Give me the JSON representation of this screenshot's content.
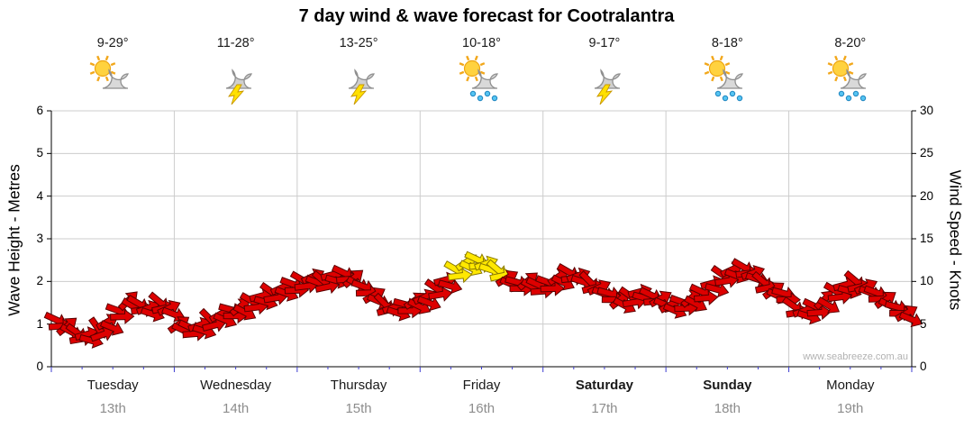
{
  "chart_data": {
    "type": "wind-forecast",
    "title": "7 day wind & wave forecast for Cootralantra",
    "watermark": "www.seabreeze.com.au",
    "left_axis": {
      "label": "Wave Height - Metres",
      "min": 0,
      "max": 6,
      "ticks": [
        0,
        1,
        2,
        3,
        4,
        5,
        6
      ]
    },
    "right_axis": {
      "label": "Wind Speed - Knots",
      "min": 0,
      "max": 30,
      "ticks": [
        0,
        5,
        10,
        15,
        20,
        25,
        30
      ]
    },
    "grid": {
      "horizontal": true,
      "vertical_day_separators": true
    },
    "days": [
      {
        "name": "Tuesday",
        "date": "13th",
        "temp": "9-29°",
        "icon": "partly-cloudy",
        "bold": false
      },
      {
        "name": "Wednesday",
        "date": "14th",
        "temp": "11-28°",
        "icon": "thunderstorm",
        "bold": false
      },
      {
        "name": "Thursday",
        "date": "15th",
        "temp": "13-25°",
        "icon": "thunderstorm",
        "bold": false
      },
      {
        "name": "Friday",
        "date": "16th",
        "temp": "10-18°",
        "icon": "sun-showers",
        "bold": false
      },
      {
        "name": "Saturday",
        "date": "17th",
        "temp": "9-17°",
        "icon": "thunderstorm",
        "bold": true
      },
      {
        "name": "Sunday",
        "date": "18th",
        "temp": "8-18°",
        "icon": "sun-showers",
        "bold": true
      },
      {
        "name": "Monday",
        "date": "19th",
        "temp": "8-20°",
        "icon": "sun-showers",
        "bold": false
      }
    ],
    "wind": {
      "unit": "knots",
      "arrow_colors": {
        "normal": "#dd0000",
        "peak": "#ffe800"
      },
      "points_format": [
        "time_days",
        "speed_knots",
        "direction_deg",
        "peak_flag"
      ],
      "points": [
        [
          0.04,
          5.5,
          25,
          0
        ],
        [
          0.13,
          4.8,
          -40,
          0
        ],
        [
          0.21,
          4.0,
          35,
          0
        ],
        [
          0.29,
          3.8,
          -15,
          0
        ],
        [
          0.38,
          4.5,
          55,
          0
        ],
        [
          0.46,
          5.3,
          -30,
          0
        ],
        [
          0.54,
          6.6,
          20,
          0
        ],
        [
          0.63,
          7.8,
          -45,
          0
        ],
        [
          0.71,
          7.4,
          30,
          0
        ],
        [
          0.79,
          6.9,
          -20,
          0
        ],
        [
          0.88,
          7.6,
          40,
          0
        ],
        [
          0.96,
          6.9,
          -25,
          0
        ],
        [
          1.04,
          5.0,
          -35,
          0
        ],
        [
          1.13,
          4.6,
          25,
          0
        ],
        [
          1.21,
          4.9,
          -20,
          0
        ],
        [
          1.29,
          5.6,
          45,
          0
        ],
        [
          1.38,
          6.2,
          -30,
          0
        ],
        [
          1.46,
          6.7,
          15,
          0
        ],
        [
          1.54,
          7.1,
          -40,
          0
        ],
        [
          1.63,
          7.7,
          30,
          0
        ],
        [
          1.71,
          8.3,
          -15,
          0
        ],
        [
          1.79,
          8.8,
          35,
          0
        ],
        [
          1.88,
          9.3,
          -25,
          0
        ],
        [
          1.96,
          9.7,
          20,
          0
        ],
        [
          2.04,
          10.2,
          30,
          0
        ],
        [
          2.13,
          10.6,
          -25,
          0
        ],
        [
          2.21,
          10.1,
          40,
          0
        ],
        [
          2.29,
          10.8,
          -15,
          0
        ],
        [
          2.38,
          11.0,
          25,
          0
        ],
        [
          2.46,
          10.4,
          -40,
          0
        ],
        [
          2.54,
          9.4,
          20,
          0
        ],
        [
          2.63,
          8.4,
          -30,
          0
        ],
        [
          2.71,
          7.4,
          45,
          0
        ],
        [
          2.79,
          7.0,
          -20,
          0
        ],
        [
          2.88,
          7.3,
          15,
          0
        ],
        [
          2.96,
          7.8,
          -35,
          0
        ],
        [
          3.04,
          8.2,
          -25,
          0
        ],
        [
          3.13,
          9.2,
          35,
          0
        ],
        [
          3.21,
          10.2,
          -15,
          0
        ],
        [
          3.29,
          11.4,
          30,
          1
        ],
        [
          3.38,
          12.3,
          -35,
          1
        ],
        [
          3.46,
          12.6,
          25,
          1
        ],
        [
          3.54,
          12.1,
          -20,
          1
        ],
        [
          3.63,
          11.4,
          40,
          1
        ],
        [
          3.71,
          10.4,
          -30,
          0
        ],
        [
          3.79,
          9.9,
          15,
          0
        ],
        [
          3.88,
          10.1,
          -40,
          0
        ],
        [
          3.96,
          9.6,
          25,
          0
        ],
        [
          4.04,
          9.9,
          20,
          0
        ],
        [
          4.13,
          10.6,
          -35,
          0
        ],
        [
          4.21,
          11.1,
          30,
          0
        ],
        [
          4.29,
          10.7,
          -20,
          0
        ],
        [
          4.38,
          10.0,
          45,
          0
        ],
        [
          4.46,
          9.3,
          -25,
          0
        ],
        [
          4.54,
          8.6,
          15,
          0
        ],
        [
          4.63,
          7.9,
          -40,
          0
        ],
        [
          4.71,
          8.3,
          35,
          0
        ],
        [
          4.79,
          8.8,
          -15,
          0
        ],
        [
          4.88,
          8.4,
          25,
          0
        ],
        [
          4.96,
          8.0,
          -30,
          0
        ],
        [
          5.04,
          7.3,
          -30,
          0
        ],
        [
          5.13,
          7.6,
          20,
          0
        ],
        [
          5.21,
          8.1,
          -40,
          0
        ],
        [
          5.29,
          8.8,
          25,
          0
        ],
        [
          5.38,
          9.8,
          -15,
          0
        ],
        [
          5.46,
          10.8,
          35,
          0
        ],
        [
          5.54,
          11.4,
          -25,
          0
        ],
        [
          5.63,
          11.7,
          30,
          0
        ],
        [
          5.71,
          11.0,
          -20,
          0
        ],
        [
          5.79,
          10.0,
          40,
          0
        ],
        [
          5.88,
          9.0,
          -35,
          0
        ],
        [
          5.96,
          8.6,
          15,
          0
        ],
        [
          6.04,
          7.1,
          35,
          0
        ],
        [
          6.13,
          6.6,
          -20,
          0
        ],
        [
          6.21,
          7.1,
          25,
          0
        ],
        [
          6.29,
          7.9,
          -45,
          0
        ],
        [
          6.38,
          8.9,
          30,
          0
        ],
        [
          6.46,
          9.6,
          -15,
          0
        ],
        [
          6.54,
          10.1,
          40,
          0
        ],
        [
          6.63,
          9.4,
          -25,
          0
        ],
        [
          6.71,
          8.7,
          20,
          0
        ],
        [
          6.79,
          7.9,
          -35,
          0
        ],
        [
          6.88,
          7.0,
          15,
          0
        ],
        [
          6.96,
          6.3,
          -30,
          0
        ]
      ]
    }
  }
}
